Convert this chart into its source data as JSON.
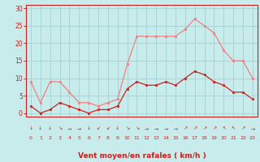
{
  "hours": [
    0,
    1,
    2,
    3,
    4,
    5,
    6,
    7,
    8,
    9,
    10,
    11,
    12,
    13,
    14,
    15,
    16,
    17,
    18,
    19,
    20,
    21,
    22,
    23
  ],
  "vent_moyen": [
    2,
    0,
    1,
    3,
    2,
    1,
    0,
    1,
    1,
    2,
    7,
    9,
    8,
    8,
    9,
    8,
    10,
    12,
    11,
    9,
    8,
    6,
    6,
    4
  ],
  "rafales": [
    9,
    3,
    9,
    9,
    6,
    3,
    3,
    2,
    3,
    4,
    14,
    22,
    22,
    22,
    22,
    22,
    24,
    27,
    25,
    23,
    18,
    15,
    15,
    10
  ],
  "wind_dirs": [
    "↓",
    "↓",
    "↓",
    "↘",
    "→",
    "→",
    "↓",
    "↙",
    "↙",
    "↓",
    "↘",
    "↘",
    "→",
    "→",
    "→",
    "→",
    "↗",
    "↗",
    "↗",
    "↗",
    "↖",
    "↖",
    "↗",
    "→"
  ],
  "bg_color": "#c8ecec",
  "grid_color": "#a8d4d4",
  "line_color_moyen": "#cc2020",
  "line_color_rafales": "#f08080",
  "xlabel": "Vent moyen/en rafales ( km/h )",
  "ylabel_ticks": [
    0,
    5,
    10,
    15,
    20,
    25,
    30
  ],
  "ylim": [
    -1,
    31
  ],
  "xlim": [
    -0.5,
    23.5
  ],
  "figsize": [
    3.2,
    2.0
  ],
  "dpi": 100
}
